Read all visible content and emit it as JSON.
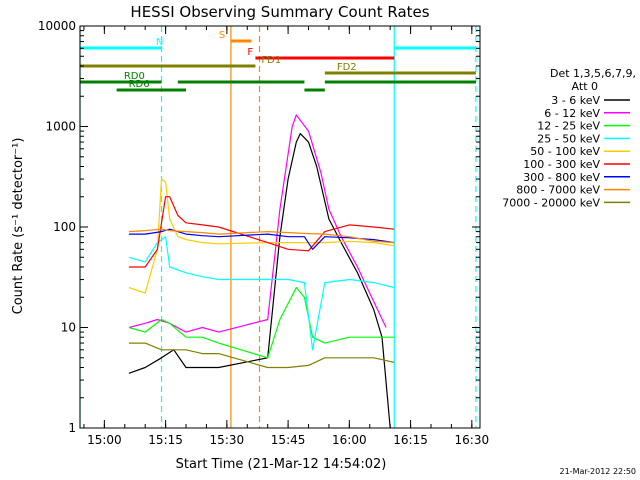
{
  "chart_data": {
    "type": "line",
    "title": "HESSI Observing Summary Count Rates",
    "xlabel": "Start Time (21-Mar-12 14:54:02)",
    "ylabel": "Count Rate (s⁻¹ detector⁻¹)",
    "x_unit": "time (HH:MM, 21-Mar-2012)",
    "xlim": [
      "14:54:02",
      "16:32"
    ],
    "ylim": [
      1,
      10000
    ],
    "yscale": "log",
    "x_ticks": [
      "15:00",
      "15:15",
      "15:30",
      "15:45",
      "16:00",
      "16:15",
      "16:30"
    ],
    "y_ticks": [
      "1",
      "10",
      "100",
      "1000",
      "10000"
    ],
    "legend_title": "Det 1,3,5,6,7,9, Att 0",
    "legend_position": "right",
    "series": [
      {
        "name": "3 - 6 keV",
        "color": "#000000",
        "points": [
          [
            "15:06",
            3.5
          ],
          [
            "15:10",
            4
          ],
          [
            "15:14",
            5
          ],
          [
            "15:17",
            6
          ],
          [
            "15:20",
            4
          ],
          [
            "15:24",
            4
          ],
          [
            "15:28",
            4
          ],
          [
            "15:40",
            5
          ],
          [
            "15:43",
            80
          ],
          [
            "15:45",
            300
          ],
          [
            "15:47",
            700
          ],
          [
            "15:48",
            850
          ],
          [
            "15:50",
            700
          ],
          [
            "15:52",
            400
          ],
          [
            "15:55",
            120
          ],
          [
            "15:58",
            70
          ],
          [
            "16:02",
            35
          ],
          [
            "16:06",
            15
          ],
          [
            "16:08",
            8
          ],
          [
            "16:10",
            1
          ]
        ]
      },
      {
        "name": "6 - 12 keV",
        "color": "#ff00ff",
        "points": [
          [
            "15:06",
            10
          ],
          [
            "15:10",
            11
          ],
          [
            "15:13",
            12
          ],
          [
            "15:16",
            11
          ],
          [
            "15:20",
            9
          ],
          [
            "15:24",
            10
          ],
          [
            "15:28",
            9
          ],
          [
            "15:40",
            12
          ],
          [
            "15:43",
            150
          ],
          [
            "15:46",
            1000
          ],
          [
            "15:47",
            1300
          ],
          [
            "15:50",
            900
          ],
          [
            "15:53",
            350
          ],
          [
            "15:55",
            150
          ],
          [
            "15:58",
            80
          ],
          [
            "16:02",
            40
          ],
          [
            "16:06",
            18
          ],
          [
            "16:09",
            10
          ]
        ]
      },
      {
        "name": "12 - 25 keV",
        "color": "#00ff00",
        "points": [
          [
            "15:06",
            10
          ],
          [
            "15:10",
            9
          ],
          [
            "15:14",
            12
          ],
          [
            "15:16",
            11
          ],
          [
            "15:20",
            8
          ],
          [
            "15:24",
            8
          ],
          [
            "15:28",
            7
          ],
          [
            "15:40",
            5
          ],
          [
            "15:43",
            12
          ],
          [
            "15:47",
            25
          ],
          [
            "15:49",
            20
          ],
          [
            "15:51",
            8
          ],
          [
            "15:54",
            7
          ],
          [
            "16:00",
            8
          ],
          [
            "16:06",
            8
          ],
          [
            "16:11",
            8
          ]
        ]
      },
      {
        "name": "25 - 50 keV",
        "color": "#00ffff",
        "points": [
          [
            "15:06",
            50
          ],
          [
            "15:10",
            45
          ],
          [
            "15:13",
            70
          ],
          [
            "15:15",
            80
          ],
          [
            "15:16",
            40
          ],
          [
            "15:20",
            35
          ],
          [
            "15:24",
            32
          ],
          [
            "15:28",
            30
          ],
          [
            "15:40",
            30
          ],
          [
            "15:45",
            30
          ],
          [
            "15:49",
            28
          ],
          [
            "15:51",
            6
          ],
          [
            "15:54",
            28
          ],
          [
            "16:00",
            30
          ],
          [
            "16:06",
            28
          ],
          [
            "16:11",
            25
          ]
        ]
      },
      {
        "name": "50 - 100 keV",
        "color": "#ffcc00",
        "points": [
          [
            "15:06",
            25
          ],
          [
            "15:10",
            22
          ],
          [
            "15:13",
            60
          ],
          [
            "15:14",
            300
          ],
          [
            "15:15",
            280
          ],
          [
            "15:16",
            120
          ],
          [
            "15:18",
            80
          ],
          [
            "15:20",
            75
          ],
          [
            "15:24",
            70
          ],
          [
            "15:28",
            68
          ],
          [
            "15:40",
            70
          ],
          [
            "15:50",
            70
          ],
          [
            "15:54",
            70
          ],
          [
            "16:00",
            72
          ],
          [
            "16:06",
            70
          ],
          [
            "16:11",
            65
          ]
        ]
      },
      {
        "name": "100 - 300 keV",
        "color": "#ff0000",
        "points": [
          [
            "15:06",
            40
          ],
          [
            "15:10",
            40
          ],
          [
            "15:13",
            60
          ],
          [
            "15:15",
            200
          ],
          [
            "15:16",
            200
          ],
          [
            "15:18",
            130
          ],
          [
            "15:20",
            110
          ],
          [
            "15:24",
            105
          ],
          [
            "15:28",
            100
          ],
          [
            "15:40",
            70
          ],
          [
            "15:45",
            60
          ],
          [
            "15:50",
            58
          ],
          [
            "15:54",
            90
          ],
          [
            "16:00",
            105
          ],
          [
            "16:06",
            100
          ],
          [
            "16:11",
            95
          ]
        ]
      },
      {
        "name": "300 - 800 keV",
        "color": "#0000ff",
        "points": [
          [
            "15:06",
            85
          ],
          [
            "15:10",
            85
          ],
          [
            "15:14",
            90
          ],
          [
            "15:16",
            95
          ],
          [
            "15:20",
            85
          ],
          [
            "15:24",
            82
          ],
          [
            "15:28",
            80
          ],
          [
            "15:40",
            85
          ],
          [
            "15:45",
            80
          ],
          [
            "15:49",
            80
          ],
          [
            "15:51",
            60
          ],
          [
            "15:54",
            80
          ],
          [
            "16:00",
            78
          ],
          [
            "16:06",
            75
          ],
          [
            "16:11",
            70
          ]
        ]
      },
      {
        "name": "800 - 7000 keV",
        "color": "#ff8800",
        "points": [
          [
            "15:06",
            90
          ],
          [
            "15:10",
            92
          ],
          [
            "15:14",
            95
          ],
          [
            "15:16",
            92
          ],
          [
            "15:20",
            90
          ],
          [
            "15:24",
            88
          ],
          [
            "15:28",
            85
          ],
          [
            "15:40",
            90
          ],
          [
            "15:45",
            88
          ],
          [
            "15:50",
            86
          ],
          [
            "15:54",
            85
          ],
          [
            "16:00",
            80
          ],
          [
            "16:06",
            72
          ],
          [
            "16:11",
            70
          ]
        ]
      },
      {
        "name": "7000 - 20000 keV",
        "color": "#808000",
        "points": [
          [
            "15:06",
            7
          ],
          [
            "15:10",
            7
          ],
          [
            "15:14",
            6
          ],
          [
            "15:16",
            6
          ],
          [
            "15:20",
            6
          ],
          [
            "15:24",
            5.5
          ],
          [
            "15:28",
            5.5
          ],
          [
            "15:40",
            4
          ],
          [
            "15:45",
            4
          ],
          [
            "15:50",
            4.2
          ],
          [
            "15:54",
            5
          ],
          [
            "16:00",
            5
          ],
          [
            "16:06",
            5
          ],
          [
            "16:11",
            4.5
          ]
        ]
      }
    ],
    "flags": [
      {
        "label": "N",
        "color": "#00ffff",
        "segments": [
          [
            "14:54",
            "15:14"
          ],
          [
            "16:11",
            "16:31"
          ]
        ]
      },
      {
        "label": "S",
        "color": "#ff8800",
        "segments": [
          [
            "15:31",
            "15:36"
          ]
        ]
      },
      {
        "label": "F",
        "color": "#ff0000",
        "segments": [
          [
            "15:37",
            "16:11"
          ]
        ]
      },
      {
        "label": "FD1",
        "color": "#808000",
        "segments": [
          [
            "14:54",
            "15:37"
          ]
        ]
      },
      {
        "label": "FD2",
        "color": "#808000",
        "segments": [
          [
            "15:54",
            "16:31"
          ]
        ]
      },
      {
        "label": "RD0",
        "color": "#008000",
        "segments": [
          [
            "14:54",
            "15:14"
          ],
          [
            "15:18",
            "15:49"
          ],
          [
            "15:54",
            "16:31"
          ]
        ]
      },
      {
        "label": "RD6",
        "color": "#008000",
        "segments": [
          [
            "15:03",
            "15:20"
          ],
          [
            "15:49",
            "15:54"
          ]
        ]
      }
    ],
    "vertical_markers": [
      {
        "time": "14:54:02",
        "color": "#00ffff",
        "style": "solid"
      },
      {
        "time": "15:14",
        "color": "#00ffff",
        "style": "dashed"
      },
      {
        "time": "15:31",
        "color": "#ff8800",
        "style": "solid"
      },
      {
        "time": "15:38",
        "color": "#ff8800",
        "style": "dashed"
      },
      {
        "time": "16:11",
        "color": "#00ffff",
        "style": "solid"
      },
      {
        "time": "16:31",
        "color": "#00ffff",
        "style": "dashed"
      }
    ]
  },
  "footer": {
    "timestamp": "21-Mar-2012 22:50"
  }
}
